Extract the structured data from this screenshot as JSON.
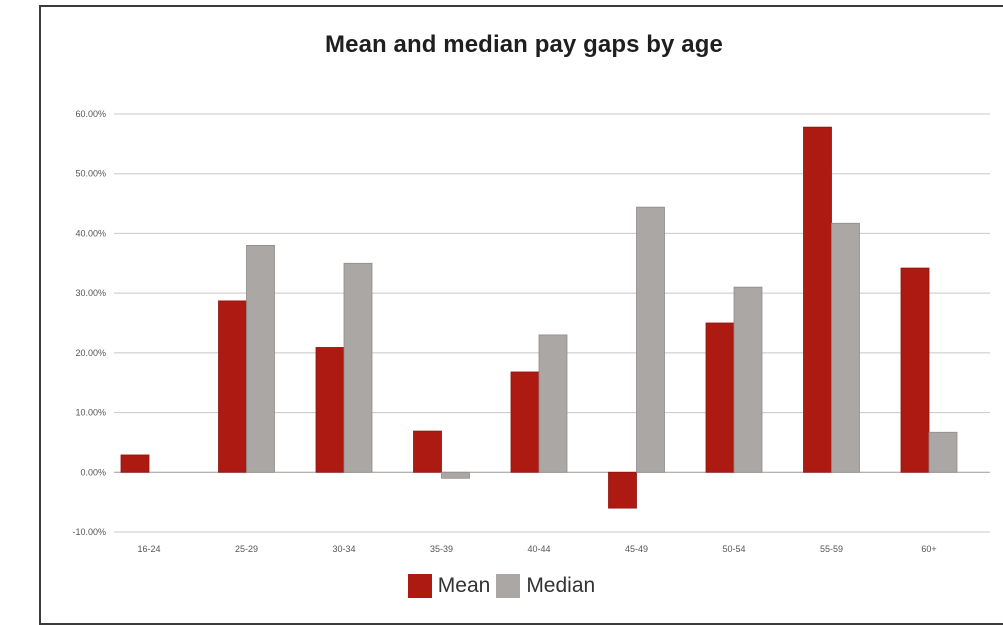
{
  "chart_data": {
    "type": "bar",
    "title": "Mean and median pay gaps by age",
    "xlabel": "",
    "ylabel": "",
    "ylim": [
      -10,
      60
    ],
    "yticks": [
      "60.00%",
      "50.00%",
      "40.00%",
      "30.00%",
      "20.00%",
      "10.00%",
      "0.00%",
      "-10.00%"
    ],
    "yticks_values": [
      60,
      50,
      40,
      30,
      20,
      10,
      0,
      -10
    ],
    "categories": [
      "16-24",
      "25-29",
      "30-34",
      "35-39",
      "40-44",
      "45-49",
      "50-54",
      "55-59",
      "60+"
    ],
    "series": [
      {
        "name": "Mean",
        "color": "#ad1a12",
        "values": [
          2.9,
          28.7,
          20.9,
          6.9,
          16.8,
          -6.0,
          25.0,
          57.8,
          34.2
        ]
      },
      {
        "name": "Median",
        "color": "#aba7a5",
        "values": [
          0.0,
          38.0,
          35.0,
          -1.0,
          23.0,
          44.4,
          31.0,
          41.7,
          6.7
        ]
      }
    ],
    "grid": true,
    "legend": "bottom"
  }
}
